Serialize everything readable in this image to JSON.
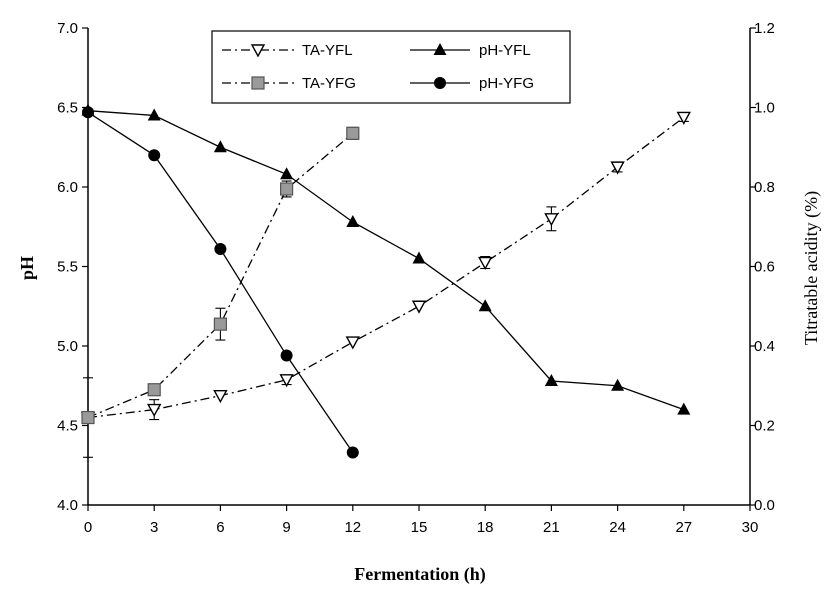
{
  "chart_data": {
    "type": "line",
    "xlabel": "Fermentation (h)",
    "ylabel": "pH",
    "y2label": "Titratable acidity (%)",
    "xlim": [
      0,
      30
    ],
    "xticks": [
      0,
      3,
      6,
      9,
      12,
      15,
      18,
      21,
      24,
      27,
      30
    ],
    "ylim": [
      4.0,
      7.0
    ],
    "yticks": [
      "4.0",
      "4.5",
      "5.0",
      "5.5",
      "6.0",
      "6.5",
      "7.0"
    ],
    "y2lim": [
      0.0,
      1.2
    ],
    "y2ticks": [
      "0.0",
      "0.2",
      "0.4",
      "0.6",
      "0.8",
      "1.0",
      "1.2"
    ],
    "grid": false,
    "legend_position": "top-center",
    "series": [
      {
        "name": "TA-YFL",
        "axis": "right",
        "marker": "triangle-down-open",
        "line": "dash-dot",
        "x": [
          0,
          3,
          6,
          9,
          12,
          15,
          18,
          21,
          24,
          27
        ],
        "y": [
          0.22,
          0.24,
          0.275,
          0.315,
          0.41,
          0.5,
          0.61,
          0.72,
          0.85,
          0.975
        ],
        "err": [
          0.1,
          0.025,
          0.0,
          0.012,
          0.0,
          0.0,
          0.015,
          0.03,
          0.012,
          0.01
        ]
      },
      {
        "name": "TA-YFG",
        "axis": "right",
        "marker": "square",
        "line": "dash-dot",
        "x": [
          0,
          3,
          6,
          9,
          12
        ],
        "y": [
          0.22,
          0.29,
          0.455,
          0.795,
          0.935
        ],
        "err": [
          0.0,
          0.0,
          0.04,
          0.02,
          0.015
        ]
      },
      {
        "name": "pH-YFL",
        "axis": "left",
        "marker": "triangle-up",
        "line": "solid",
        "x": [
          0,
          3,
          6,
          9,
          12,
          15,
          18,
          21,
          24,
          27
        ],
        "y": [
          6.48,
          6.45,
          6.25,
          6.08,
          5.78,
          5.55,
          5.25,
          4.78,
          4.75,
          4.6
        ]
      },
      {
        "name": "pH-YFG",
        "axis": "left",
        "marker": "circle",
        "line": "solid",
        "x": [
          0,
          3,
          6,
          9,
          12
        ],
        "y": [
          6.47,
          6.2,
          5.61,
          4.94,
          4.33
        ]
      }
    ],
    "colors": {
      "line": "#000000",
      "square_fill": "#9a9a9a"
    }
  }
}
